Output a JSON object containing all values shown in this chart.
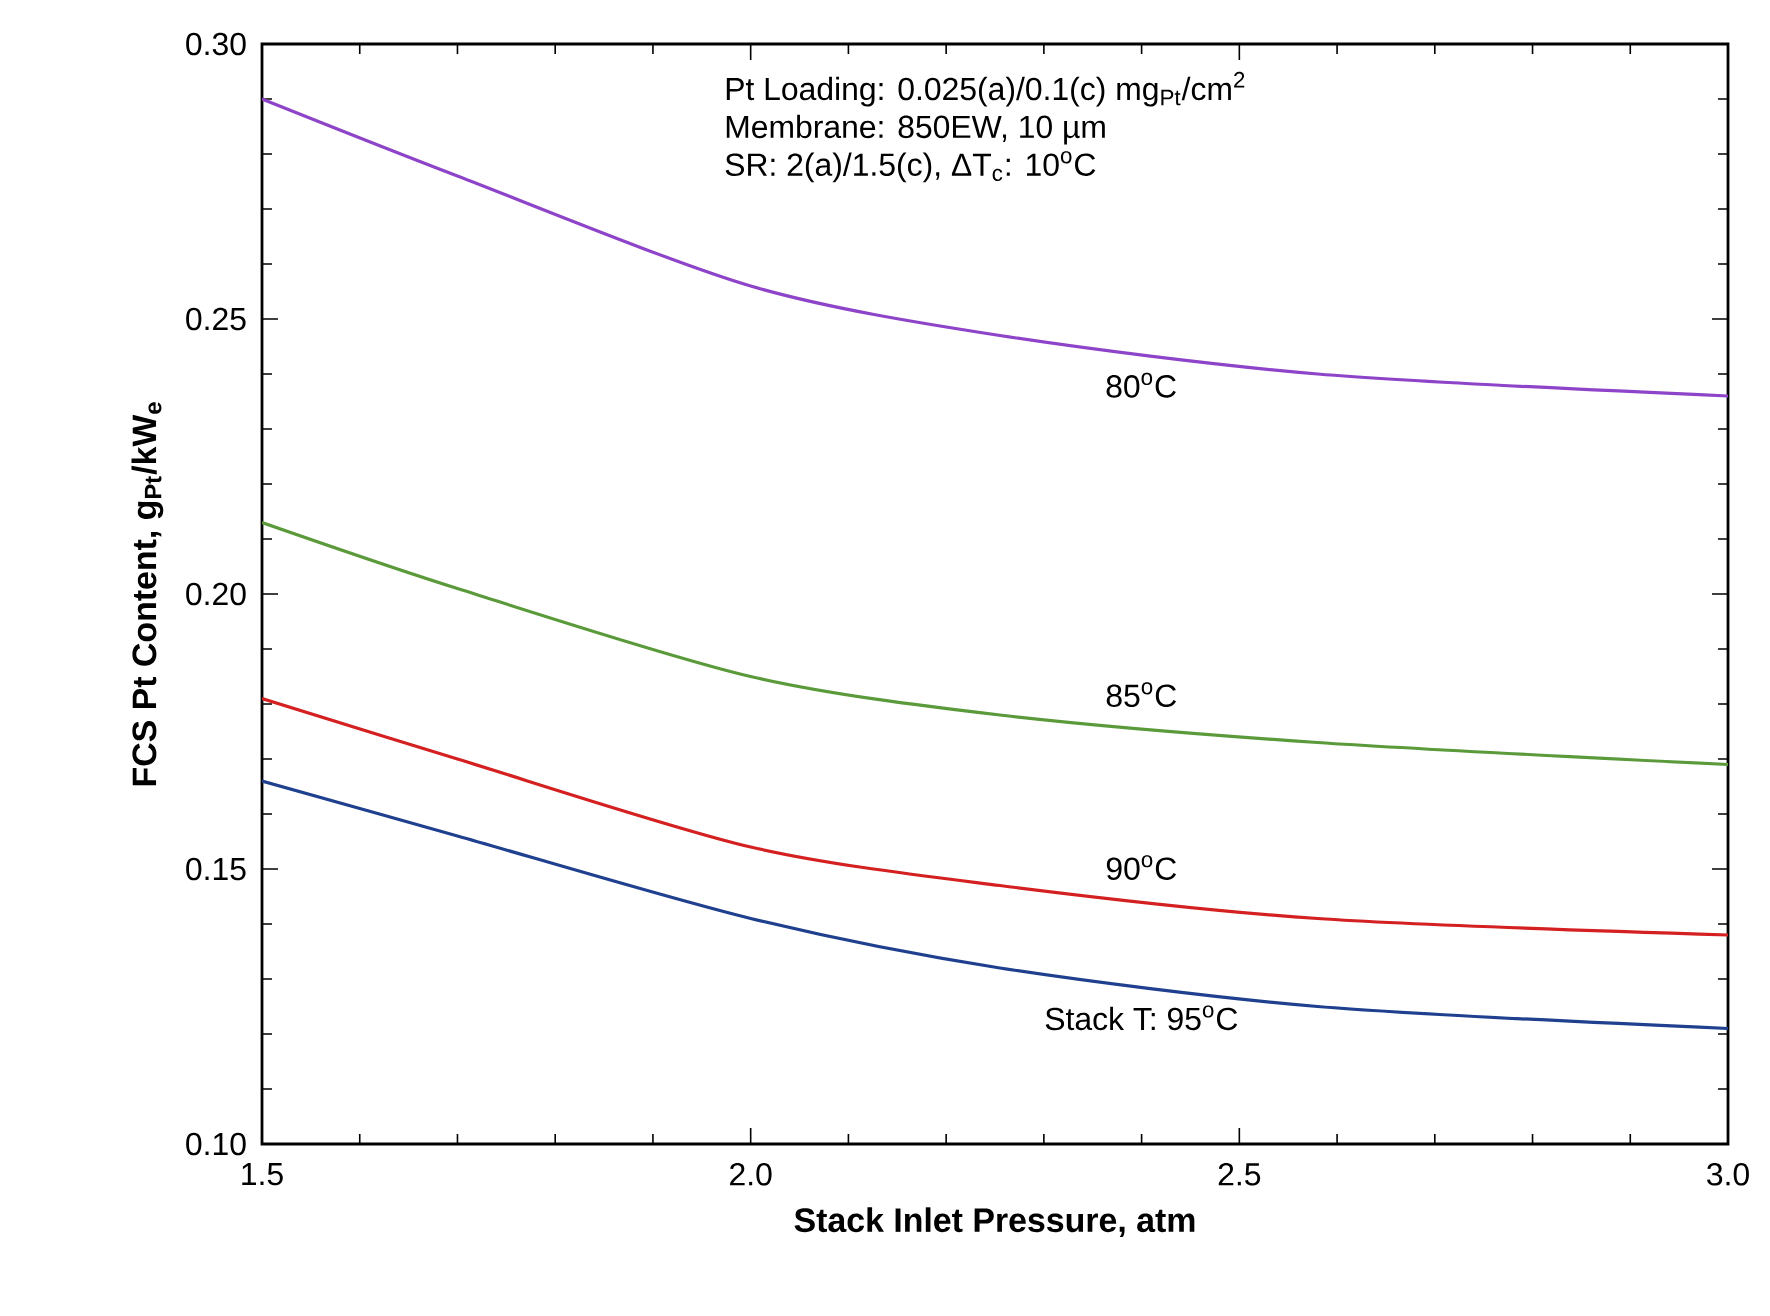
{
  "chart_data": {
    "type": "line",
    "xlabel": "Stack Inlet Pressure, atm",
    "ylabel": "FCS Pt Content, g$_{Pt}$/kW$_{e}$",
    "annotations": [
      "Pt Loading: 0.025(a)/0.1(c) mg$_{Pt}$/cm$^{2}$",
      "Membrane: 850EW, 10 µm",
      "SR: 2(a)/1.5(c),  ΔT$_{c}$: 10$^{o}$C"
    ],
    "x": [
      1.5,
      1.7,
      2.0,
      2.255,
      2.58,
      3.0
    ],
    "series": [
      {
        "name": "80$^{o}$C",
        "color": "#8e44c8",
        "values": [
          0.29,
          0.276,
          0.256,
          0.247,
          0.24,
          0.236
        ]
      },
      {
        "name": "85$^{o}$C",
        "color": "#5a9a3a",
        "values": [
          0.213,
          0.201,
          0.185,
          0.178,
          0.173,
          0.169
        ]
      },
      {
        "name": "90$^{o}$C",
        "color": "#d42020",
        "values": [
          0.181,
          0.17,
          0.154,
          0.147,
          0.141,
          0.138
        ]
      },
      {
        "name": "Stack T: 95$^{o}$C",
        "color": "#1f3f8f",
        "values": [
          0.166,
          0.156,
          0.141,
          0.132,
          0.125,
          0.121
        ]
      }
    ],
    "xlim": [
      1.5,
      3.0
    ],
    "ylim": [
      0.1,
      0.3
    ],
    "xticks": [
      1.5,
      {
        "value": 2.0,
        "label": "2.0"
      },
      2.5,
      {
        "value": 3.0,
        "label": "3.0"
      }
    ],
    "yticks": [
      {
        "value": 0.1,
        "label": "0.10"
      },
      0.15,
      {
        "value": 0.2,
        "label": "0.20"
      },
      0.25,
      {
        "value": 0.3,
        "label": "0.30"
      }
    ],
    "grid": false,
    "legend": false,
    "marker": "none",
    "line_style": "solid"
  }
}
